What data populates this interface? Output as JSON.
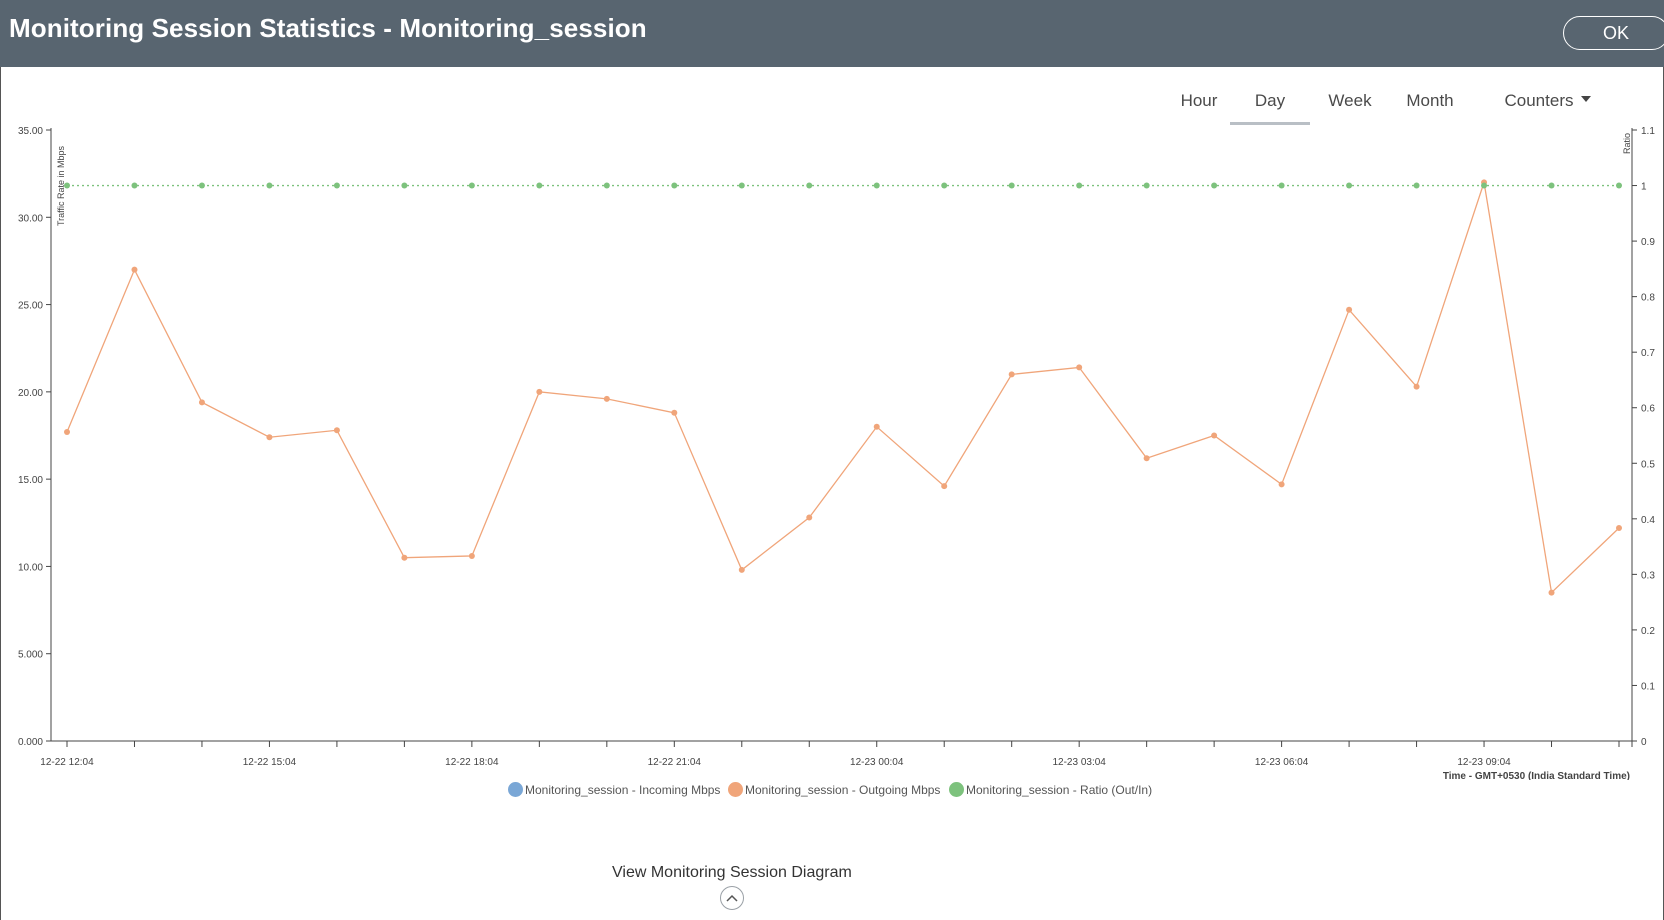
{
  "window": {
    "title": "Monitoring Session Statistics - Monitoring_session",
    "ok_label": "OK"
  },
  "tabs": [
    {
      "label": "Hour",
      "active": false
    },
    {
      "label": "Day",
      "active": true
    },
    {
      "label": "Week",
      "active": false
    },
    {
      "label": "Month",
      "active": false
    }
  ],
  "counters_label": "Counters",
  "chart_data": {
    "type": "line",
    "title": "",
    "ylabel": "Traffic Rate in Mbps",
    "y2label": "Ratio",
    "xlabel": "Time - GMT+0530 (India Standard Time)",
    "ylim": [
      0,
      35
    ],
    "y2lim": [
      0,
      1.1
    ],
    "y_ticks": [
      "0.000",
      "5.000",
      "10.00",
      "15.00",
      "20.00",
      "25.00",
      "30.00",
      "35.00"
    ],
    "y2_ticks": [
      "0",
      "0.1",
      "0.2",
      "0.3",
      "0.4",
      "0.5",
      "0.6",
      "0.7",
      "0.8",
      "0.9",
      "1",
      "1.1"
    ],
    "x_tick_labels": [
      "12-22 12:04",
      "12-22 15:04",
      "12-22 18:04",
      "12-22 21:04",
      "12-23 00:04",
      "12-23 03:04",
      "12-23 06:04",
      "12-23 09:04"
    ],
    "x_points": [
      "12-22 12:04",
      "12-22 13:04",
      "12-22 14:04",
      "12-22 15:04",
      "12-22 16:04",
      "12-22 17:04",
      "12-22 18:04",
      "12-22 19:04",
      "12-22 20:04",
      "12-22 21:04",
      "12-22 22:04",
      "12-22 23:04",
      "12-23 00:04",
      "12-23 01:04",
      "12-23 02:04",
      "12-23 03:04",
      "12-23 04:04",
      "12-23 05:04",
      "12-23 06:04",
      "12-23 07:04",
      "12-23 08:04",
      "12-23 09:04",
      "12-23 10:04",
      "12-23 11:04"
    ],
    "grid": false,
    "legend_position": "bottom",
    "series": [
      {
        "name": "Monitoring_session - Incoming Mbps",
        "color": "#7aa7d6",
        "axis": "left",
        "values": []
      },
      {
        "name": "Monitoring_session - Outgoing Mbps",
        "color": "#f0a57a",
        "axis": "left",
        "values": [
          17.7,
          27.0,
          19.4,
          17.4,
          17.8,
          10.5,
          10.6,
          20.0,
          19.6,
          18.8,
          9.8,
          12.8,
          18.0,
          14.6,
          21.0,
          21.4,
          16.2,
          17.5,
          14.7,
          24.7,
          20.3,
          32.0,
          8.5,
          12.2
        ]
      },
      {
        "name": "Monitoring_session - Ratio (Out/In)",
        "color": "#7dc27d",
        "axis": "right",
        "style": "dotted",
        "values": [
          1,
          1,
          1,
          1,
          1,
          1,
          1,
          1,
          1,
          1,
          1,
          1,
          1,
          1,
          1,
          1,
          1,
          1,
          1,
          1,
          1,
          1,
          1,
          1
        ]
      }
    ]
  },
  "footer": {
    "diagram_link": "View Monitoring Session Diagram"
  },
  "icons": {
    "expand": "chevron-up-icon",
    "counters": "caret-down-icon"
  }
}
